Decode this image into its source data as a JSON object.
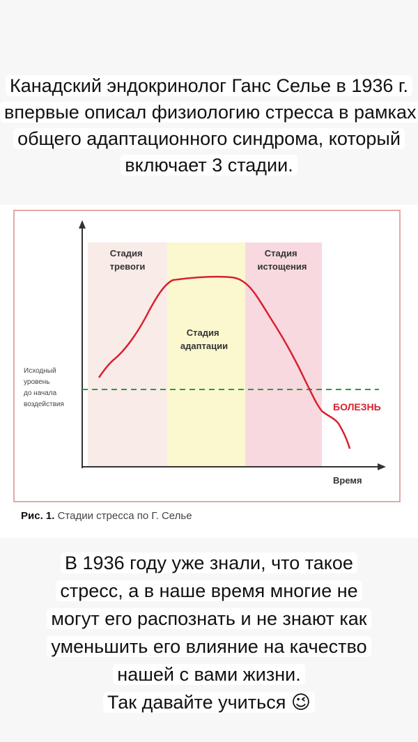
{
  "intro_text": "Канадский эндокринолог Ганс Селье в 1936 г. впервые описал физиологию стресса в рамках общего адаптационного синдрома, который включает 3 стадии.",
  "figure": {
    "stage_alarm": [
      "Стадия",
      "тревоги"
    ],
    "stage_adaptation": [
      "Стадия",
      "адаптации"
    ],
    "stage_exhaustion": [
      "Стадия",
      "истощения"
    ],
    "baseline_label": [
      "Исходный",
      "уровень",
      "до начала",
      "воздействия"
    ],
    "disease_label": "БОЛЕЗНЬ",
    "time_label": "Время",
    "caption_num": "Рис. 1.",
    "caption_text": "Стадии стресса по Г. Селье",
    "colors": {
      "alarm_zone": "#f9ebe7",
      "adaptation_zone": "#fbf8d0",
      "exhaustion_zone": "#f8d9df",
      "curve": "#d8202f",
      "baseline": "#2e9a3e",
      "disease": "#d8202f",
      "frame": "#e08a8a"
    }
  },
  "outro_lines": [
    "В 1936 году уже знали, что такое",
    "стресс, а в наше время многие не",
    "могут его распознать и  не  знают как",
    "уменьшить его влияние на качество",
    "нашей с вами жизни.",
    "Так давайте учиться 😉"
  ]
}
